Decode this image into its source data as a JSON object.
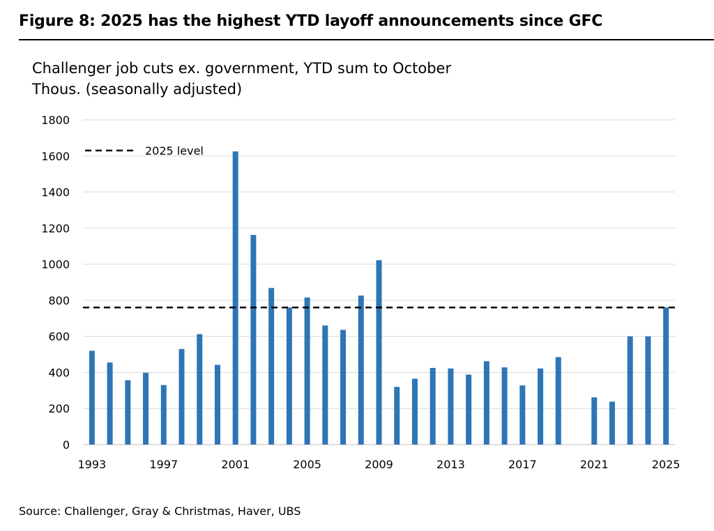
{
  "figure": {
    "title": "Figure 8: 2025 has the highest YTD layoff announcements since GFC",
    "source": "Source: Challenger, Gray & Christmas, Haver, UBS"
  },
  "chart_data": {
    "type": "bar",
    "title": "Challenger job cuts ex. government, YTD sum to October",
    "subtitle": "Thous. (seasonally adjusted)",
    "xlabel": "",
    "ylabel": "",
    "ylim": [
      0,
      1800
    ],
    "yticks": [
      0,
      200,
      400,
      600,
      800,
      1000,
      1200,
      1400,
      1600,
      1800
    ],
    "xtick_labels": [
      "1993",
      "1997",
      "2001",
      "2005",
      "2009",
      "2013",
      "2017",
      "2021",
      "2025"
    ],
    "grid": "horizontal",
    "bar_color": "#2e75b6",
    "categories": [
      "1993",
      "1994",
      "1995",
      "1996",
      "1997",
      "1998",
      "1999",
      "2000",
      "2001",
      "2002",
      "2003",
      "2004",
      "2005",
      "2006",
      "2007",
      "2008",
      "2009",
      "2010",
      "2011",
      "2012",
      "2013",
      "2014",
      "2015",
      "2016",
      "2017",
      "2018",
      "2019",
      "2020",
      "2021",
      "2022",
      "2023",
      "2024",
      "2025"
    ],
    "values": [
      520,
      455,
      357,
      398,
      330,
      530,
      612,
      442,
      1625,
      1162,
      868,
      760,
      815,
      660,
      636,
      826,
      1022,
      320,
      365,
      425,
      422,
      388,
      462,
      428,
      328,
      422,
      485,
      null,
      262,
      238,
      600,
      600,
      760
    ],
    "reference_line": {
      "label": "2025 level",
      "value": 760,
      "style": "dashed",
      "color": "#000000"
    },
    "legend_position": "top-left"
  }
}
